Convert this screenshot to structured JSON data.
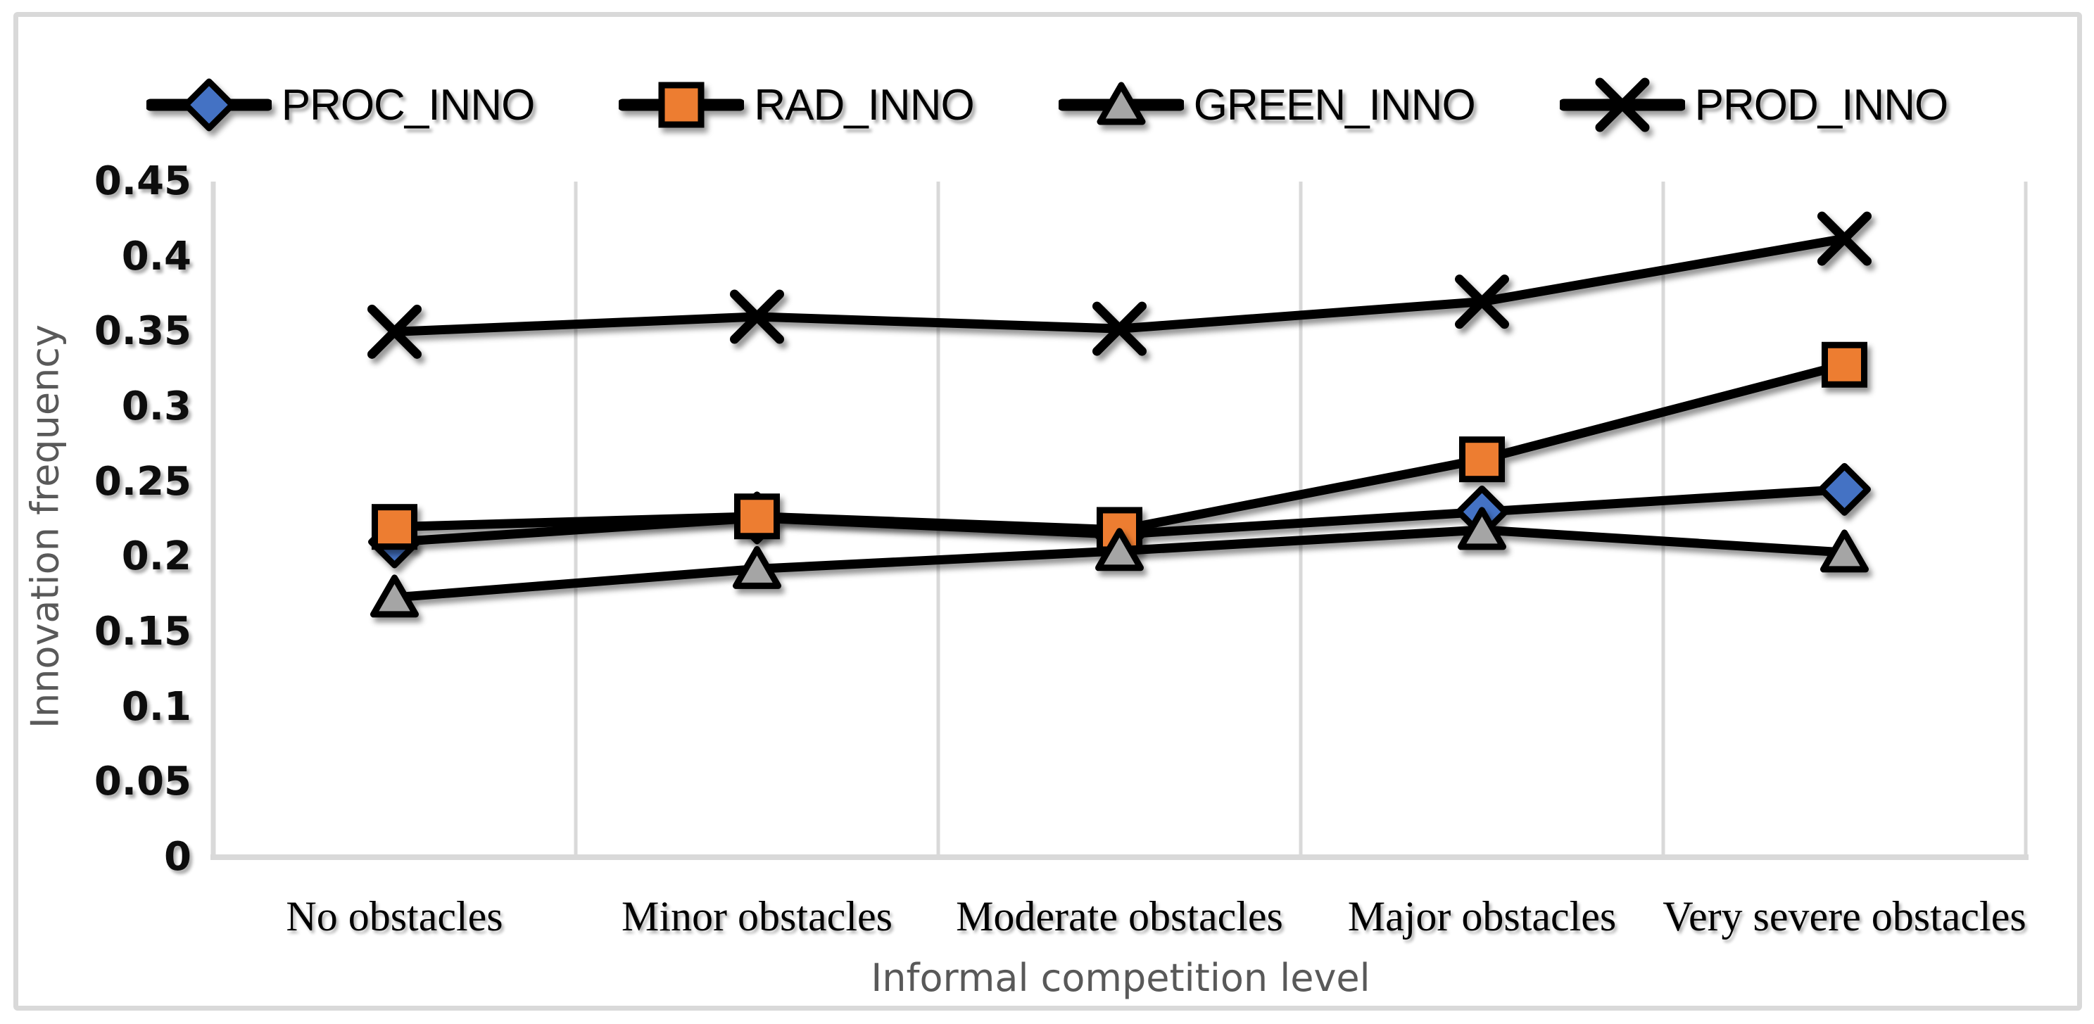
{
  "figure": {
    "background": "#ffffff",
    "border_color": "#d9d9d9",
    "gridline_color": "#d9d9d9",
    "line_color": "#000000"
  },
  "legend": {
    "position": "top",
    "items": [
      {
        "label": "PROC_INNO",
        "marker": "diamond-icon"
      },
      {
        "label": "RAD_INNO",
        "marker": "square-icon"
      },
      {
        "label": "GREEN_INNO",
        "marker": "triangle-icon"
      },
      {
        "label": "PROD_INNO",
        "marker": "x-icon"
      }
    ]
  },
  "chart_data": {
    "type": "line",
    "title": "",
    "xlabel": "Informal competition level",
    "ylabel": "Innovation frequency",
    "categories": [
      "No obstacles",
      "Minor obstacles",
      "Moderate obstacles",
      "Major obstacles",
      "Very severe obstacles"
    ],
    "ylim": [
      0,
      0.45
    ],
    "y_ticks": [
      0,
      0.05,
      0.1,
      0.15,
      0.2,
      0.25,
      0.3,
      0.35,
      0.4,
      0.45
    ],
    "grid": "vertical-category-boundaries",
    "legend_position": "top",
    "series": [
      {
        "name": "PROC_INNO",
        "marker": "diamond",
        "marker_color": "#4472c4",
        "line_color": "#000000",
        "values": [
          0.21,
          0.226,
          0.215,
          0.23,
          0.245
        ]
      },
      {
        "name": "RAD_INNO",
        "marker": "square",
        "marker_color": "#ed7d31",
        "line_color": "#000000",
        "values": [
          0.22,
          0.227,
          0.218,
          0.265,
          0.328
        ]
      },
      {
        "name": "GREEN_INNO",
        "marker": "triangle",
        "marker_color": "#a5a5a5",
        "line_color": "#000000",
        "values": [
          0.173,
          0.192,
          0.204,
          0.218,
          0.203
        ]
      },
      {
        "name": "PROD_INNO",
        "marker": "x",
        "marker_color": "#000000",
        "line_color": "#000000",
        "values": [
          0.35,
          0.36,
          0.352,
          0.37,
          0.412
        ]
      }
    ]
  }
}
